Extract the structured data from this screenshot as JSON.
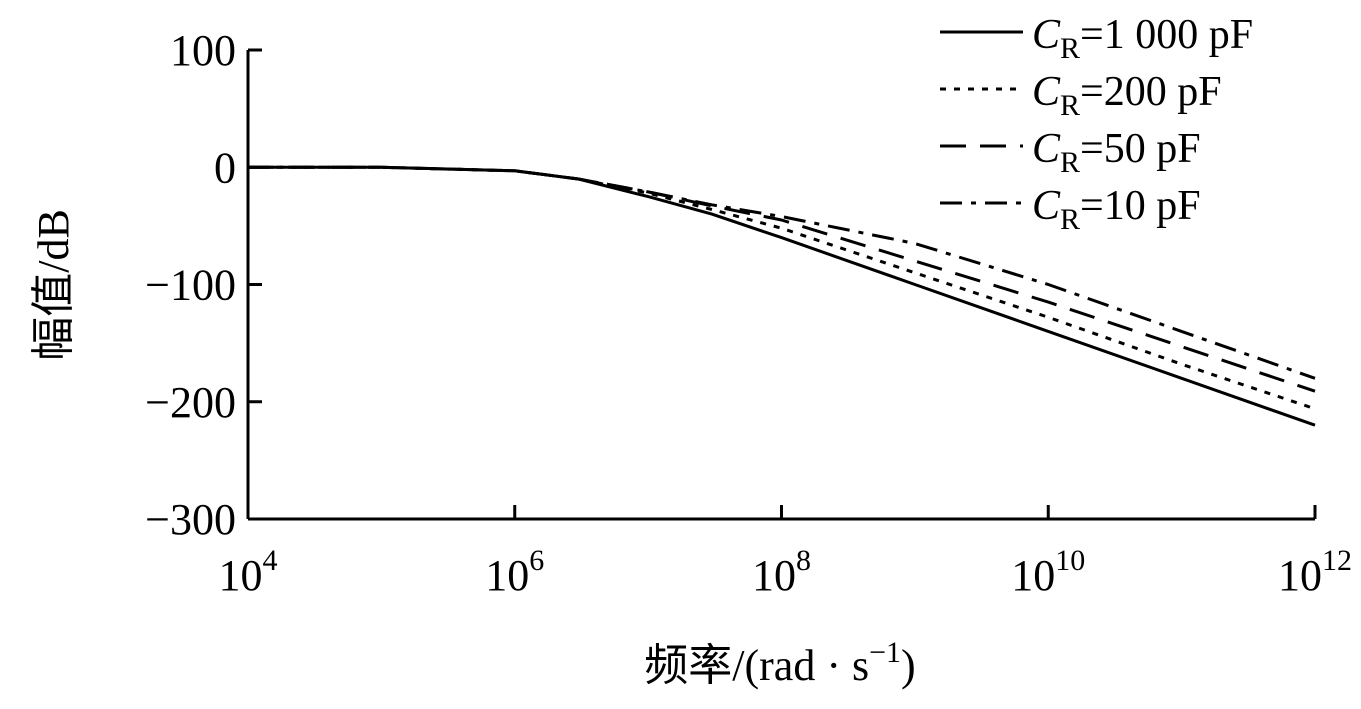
{
  "chart_data": {
    "type": "line",
    "xscale": "log",
    "xlim": [
      10000,
      1000000000000
    ],
    "ylim": [
      -300,
      100
    ],
    "xticks": [
      {
        "base": "10",
        "exp": "4"
      },
      {
        "base": "10",
        "exp": "6"
      },
      {
        "base": "10",
        "exp": "8"
      },
      {
        "base": "10",
        "exp": "10"
      },
      {
        "base": "10",
        "exp": "12"
      }
    ],
    "xtick_values": [
      10000,
      1000000,
      100000000,
      10000000000,
      1000000000000
    ],
    "yticks": [
      "100",
      "0",
      "−100",
      "−200",
      "−300"
    ],
    "ytick_values": [
      100,
      0,
      -100,
      -200,
      -300
    ],
    "xlabel": {
      "main": "频率/(rad · s",
      "sup": "−1",
      "close": ")"
    },
    "ylabel": "幅值/dB",
    "grid": false,
    "legend_position": "top-right",
    "series": [
      {
        "name": "=1 000 pF",
        "symbol": "C",
        "subscript": "R",
        "dash": "solid",
        "x": [
          10000,
          100000,
          1000000,
          3000000,
          10000000,
          30000000,
          100000000,
          1000000000,
          10000000000,
          100000000000,
          1000000000000
        ],
        "y": [
          0,
          0,
          -3,
          -10,
          -25,
          -40,
          -60,
          -100,
          -140,
          -180,
          -220
        ]
      },
      {
        "name": "=200 pF",
        "symbol": "C",
        "subscript": "R",
        "dash": "dotted",
        "x": [
          10000,
          100000,
          1000000,
          3000000,
          10000000,
          30000000,
          100000000,
          1000000000,
          10000000000,
          100000000000,
          1000000000000
        ],
        "y": [
          0,
          0,
          -3,
          -10,
          -22,
          -36,
          -52,
          -90,
          -128,
          -168,
          -206
        ]
      },
      {
        "name": "=50 pF",
        "symbol": "C",
        "subscript": "R",
        "dash": "dashed",
        "x": [
          10000,
          100000,
          1000000,
          3000000,
          10000000,
          30000000,
          100000000,
          1000000000,
          10000000000,
          100000000000,
          1000000000000
        ],
        "y": [
          0,
          0,
          -3,
          -10,
          -21,
          -33,
          -45,
          -80,
          -115,
          -153,
          -191
        ]
      },
      {
        "name": "=10 pF",
        "symbol": "C",
        "subscript": "R",
        "dash": "dashdot",
        "x": [
          10000,
          100000,
          1000000,
          3000000,
          10000000,
          30000000,
          100000000,
          1000000000,
          10000000000,
          100000000000,
          1000000000000
        ],
        "y": [
          0,
          0,
          -3,
          -10,
          -21,
          -32,
          -42,
          -65,
          -100,
          -140,
          -180
        ]
      }
    ]
  }
}
